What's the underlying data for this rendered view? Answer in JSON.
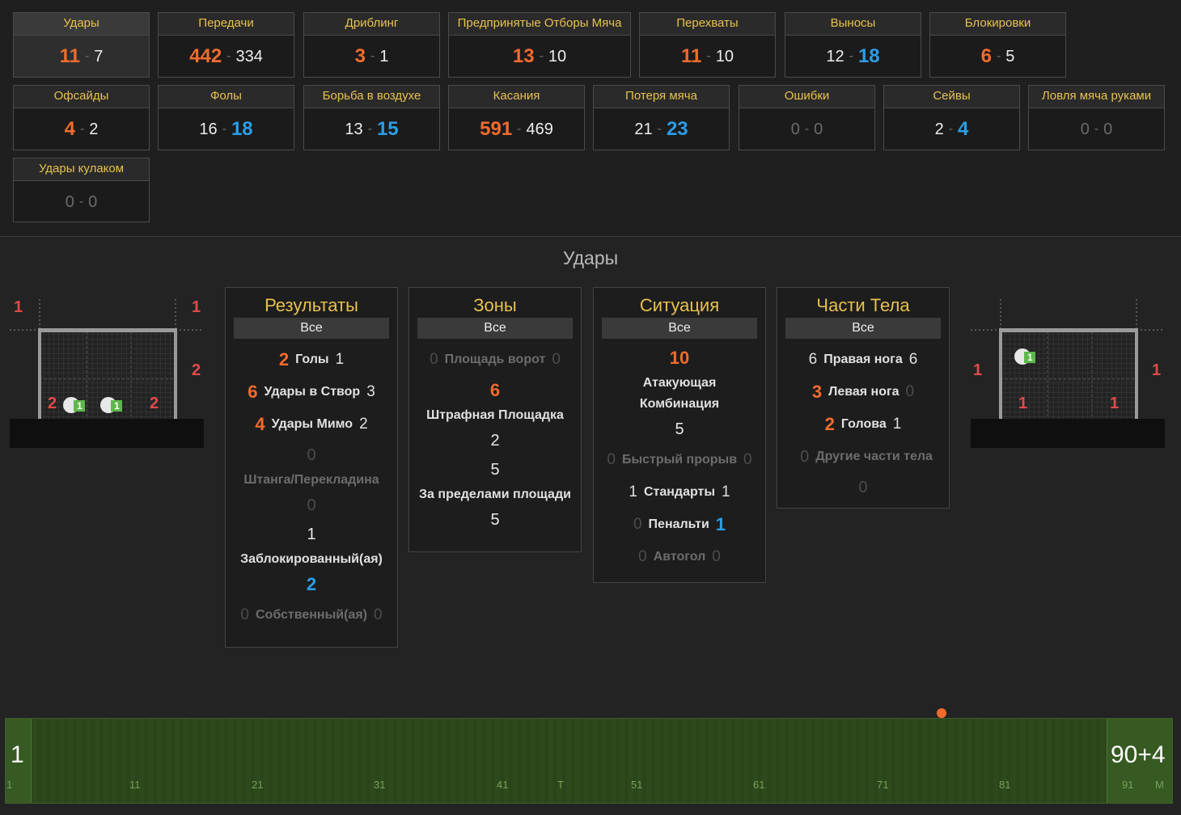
{
  "stats": [
    {
      "title": "Удары",
      "home": "11",
      "away": "7",
      "lead": "home"
    },
    {
      "title": "Передачи",
      "home": "442",
      "away": "334",
      "lead": "home"
    },
    {
      "title": "Дриблинг",
      "home": "3",
      "away": "1",
      "lead": "home"
    },
    {
      "title": "Предпринятые Отборы Мяча",
      "home": "13",
      "away": "10",
      "lead": "home"
    },
    {
      "title": "Перехваты",
      "home": "11",
      "away": "10",
      "lead": "home"
    },
    {
      "title": "Выносы",
      "home": "12",
      "away": "18",
      "lead": "away"
    },
    {
      "title": "Блокировки",
      "home": "6",
      "away": "5",
      "lead": "home"
    },
    {
      "title": "Офсайды",
      "home": "4",
      "away": "2",
      "lead": "home"
    },
    {
      "title": "Фолы",
      "home": "16",
      "away": "18",
      "lead": "away"
    },
    {
      "title": "Борьба в воздухе",
      "home": "13",
      "away": "15",
      "lead": "away"
    },
    {
      "title": "Касания",
      "home": "591",
      "away": "469",
      "lead": "home"
    },
    {
      "title": "Потеря мяча",
      "home": "21",
      "away": "23",
      "lead": "away"
    },
    {
      "title": "Ошибки",
      "home": "0",
      "away": "0",
      "lead": "none"
    },
    {
      "title": "Сейвы",
      "home": "2",
      "away": "4",
      "lead": "away"
    },
    {
      "title": "Ловля мяча руками",
      "home": "0",
      "away": "0",
      "lead": "none"
    },
    {
      "title": "Удары кулаком",
      "home": "0",
      "away": "0",
      "lead": "none"
    }
  ],
  "section_title": "Удары",
  "panels": {
    "results": {
      "title": "Результаты",
      "filter": "Все",
      "goals": {
        "home": "2",
        "label": "Голы",
        "away": "1"
      },
      "on_target": {
        "home": "6",
        "label": "Удары в Створ",
        "away": "3"
      },
      "off_target": {
        "home": "4",
        "label": "Удары Мимо",
        "away": "2"
      },
      "woodwork": {
        "home": "0",
        "label": "Штанга/Перекладина",
        "away": "0"
      },
      "blocked": {
        "home": "1",
        "label": "Заблокированный(ая)",
        "away": "2"
      },
      "own": {
        "home": "0",
        "label": "Собственный(ая)",
        "away": "0"
      }
    },
    "zones": {
      "title": "Зоны",
      "filter": "Все",
      "six_yard": {
        "home": "0",
        "label": "Площадь ворот",
        "away": "0"
      },
      "box": {
        "home": "6",
        "label": "Штрафная Площадка",
        "away": "2"
      },
      "outside": {
        "home": "5",
        "label": "За пределами площади",
        "away": "5"
      }
    },
    "situation": {
      "title": "Ситуация",
      "filter": "Все",
      "attack": {
        "home": "10",
        "label": "Атакующая Комбинация",
        "away": "5"
      },
      "fast_break": {
        "home": "0",
        "label": "Быстрый прорыв",
        "away": "0"
      },
      "set_pieces": {
        "home": "1",
        "label": "Стандарты",
        "away": "1"
      },
      "penalty": {
        "home": "0",
        "label": "Пенальти",
        "away": "1"
      },
      "own_goal": {
        "home": "0",
        "label": "Автогол",
        "away": "0"
      }
    },
    "body": {
      "title": "Части Тела",
      "filter": "Все",
      "right_foot": {
        "home": "6",
        "label": "Правая нога",
        "away": "6"
      },
      "left_foot": {
        "home": "3",
        "label": "Левая нога",
        "away": "0"
      },
      "head": {
        "home": "2",
        "label": "Голова",
        "away": "1"
      },
      "other": {
        "home": "0",
        "label": "Другие части тела",
        "away": "0"
      }
    }
  },
  "goal_left": {
    "top_left": "1",
    "top_right": "1",
    "right_mid": "2",
    "in_left": "2",
    "in_right": "2",
    "ball_a": "1",
    "ball_b": "1"
  },
  "goal_right": {
    "left_mid": "1",
    "right_mid": "1",
    "in_left": "1",
    "in_right": "1",
    "ball": "1"
  },
  "timeline": {
    "start": "1",
    "end": "90+4",
    "ticks": [
      "1",
      "11",
      "21",
      "31",
      "41",
      "T",
      "51",
      "61",
      "71",
      "81",
      "91",
      "M"
    ]
  }
}
